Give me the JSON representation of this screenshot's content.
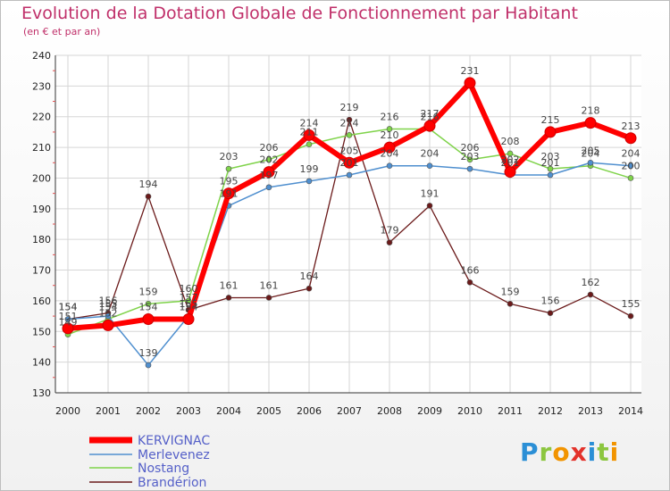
{
  "chart_data": {
    "type": "line",
    "title": "Evolution de la Dotation Globale de Fonctionnement par Habitant",
    "subtitle": "(en € et par an)",
    "xlabel": "",
    "ylabel": "",
    "categories": [
      "2000",
      "2001",
      "2002",
      "2003",
      "2004",
      "2005",
      "2006",
      "2007",
      "2008",
      "2009",
      "2010",
      "2011",
      "2012",
      "2013",
      "2014"
    ],
    "ylim": [
      130,
      240
    ],
    "yticks": [
      130,
      140,
      150,
      160,
      170,
      180,
      190,
      200,
      210,
      220,
      230,
      240
    ],
    "grid": true,
    "legend_position": "bottom-left",
    "series": [
      {
        "name": "KERVIGNAC",
        "color": "#ff0000",
        "values": [
          151,
          152,
          154,
          154,
          195,
          202,
          214,
          205,
          210,
          217,
          231,
          202,
          215,
          218,
          213
        ]
      },
      {
        "name": "Merlevenez",
        "color": "#4f8fcf",
        "values": [
          154,
          155,
          139,
          155,
          191,
          197,
          199,
          201,
          204,
          204,
          203,
          201,
          201,
          205,
          204
        ]
      },
      {
        "name": "Nostang",
        "color": "#7fd34a",
        "values": [
          149,
          154,
          159,
          160,
          203,
          206,
          211,
          214,
          216,
          216,
          206,
          208,
          203,
          204,
          200
        ]
      },
      {
        "name": "Brandérion",
        "color": "#6b1a1a",
        "values": [
          154,
          156,
          194,
          157,
          161,
          161,
          164,
          219,
          179,
          191,
          166,
          159,
          156,
          162,
          155
        ]
      }
    ]
  },
  "logo": {
    "text": [
      "P",
      "r",
      "o",
      "x",
      "i",
      "t",
      "i"
    ]
  }
}
